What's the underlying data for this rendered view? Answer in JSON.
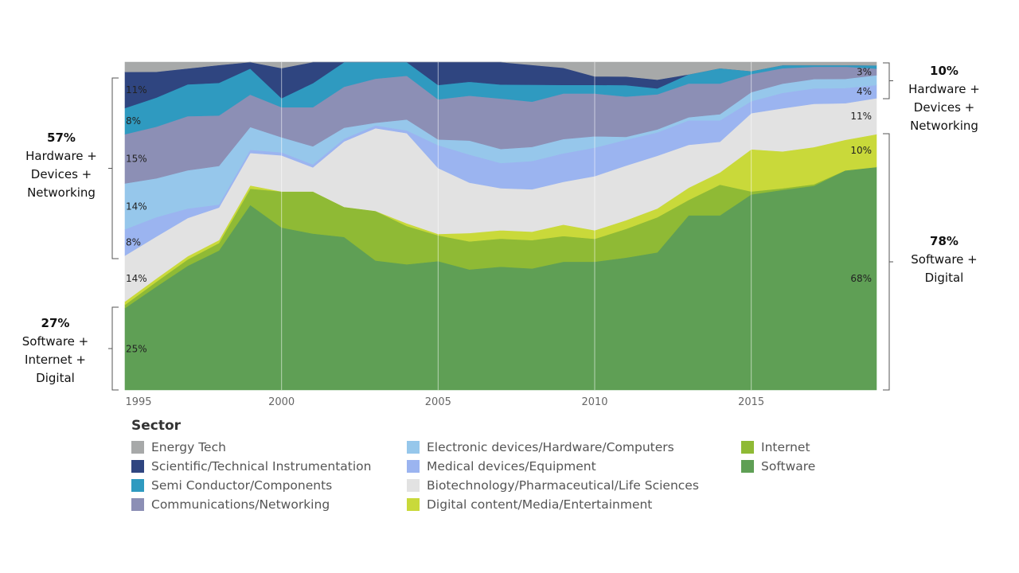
{
  "chart_data": {
    "type": "area",
    "stacking": "percent",
    "x": [
      1995,
      1996,
      1997,
      1998,
      1999,
      2000,
      2001,
      2002,
      2003,
      2004,
      2005,
      2006,
      2007,
      2008,
      2009,
      2010,
      2011,
      2012,
      2013,
      2014,
      2015,
      2016,
      2017,
      2018,
      2019
    ],
    "xticks": [
      "1995",
      "2000",
      "2005",
      "2010",
      "2015"
    ],
    "xlim": [
      1995,
      2019
    ],
    "ylim": [
      0,
      100
    ],
    "legend_title": "Sector",
    "legend_position": "bottom",
    "grid": "vertical lines at ticks",
    "series": [
      {
        "name": "Software",
        "color": "#5f9f55",
        "values": [
          25,
          32,
          39,
          47,
          57,
          54,
          52,
          56,
          47,
          46,
          45,
          43,
          44,
          43,
          45,
          45,
          46,
          47,
          57,
          57,
          65,
          65,
          66,
          72,
          68
        ]
      },
      {
        "name": "Internet",
        "color": "#8fba35",
        "values": [
          1,
          1.5,
          2,
          2.5,
          5,
          12,
          14,
          11,
          18,
          14,
          9,
          10,
          10,
          10,
          9,
          8,
          10,
          12,
          5,
          10,
          1,
          0.5,
          0.5,
          0,
          0
        ]
      },
      {
        "name": "Digital content/Media/Entertainment",
        "color": "#c9d93a",
        "values": [
          1,
          1,
          1,
          1,
          1,
          0,
          0,
          0,
          0,
          1,
          0.5,
          3,
          3,
          3,
          4,
          3,
          3,
          3,
          4,
          4,
          14,
          12,
          12,
          10,
          10
        ]
      },
      {
        "name": "Biotechnology/Pharmaceutical/Life Sciences",
        "color": "#e2e2e2",
        "values": [
          14,
          13,
          12,
          11,
          10,
          12,
          8,
          24,
          30,
          33,
          23,
          18,
          15,
          15,
          15,
          19,
          19,
          18,
          14,
          10,
          12,
          14,
          14,
          12,
          11
        ]
      },
      {
        "name": "Medical devices/Equipment",
        "color": "#9bb4f0",
        "values": [
          8,
          6,
          3,
          1,
          1,
          1,
          1,
          1,
          1,
          1,
          8,
          10,
          9,
          10,
          10,
          10,
          9,
          8,
          8,
          7,
          4,
          5,
          5,
          5,
          4
        ]
      },
      {
        "name": "Electronic devices/Hardware/Computers",
        "color": "#96c7eb",
        "values": [
          14,
          12,
          12,
          13,
          7,
          5,
          6,
          4,
          1,
          4,
          2,
          5,
          5,
          5,
          5,
          4,
          1,
          1,
          1,
          2,
          3,
          3,
          3,
          3,
          3
        ]
      },
      {
        "name": "Communications/Networking",
        "color": "#8c8fb5",
        "values": [
          15,
          16,
          17,
          17,
          10,
          10,
          13,
          15,
          16,
          16,
          14,
          16,
          18,
          16,
          16,
          15,
          14,
          12,
          11,
          10,
          6,
          5,
          4,
          4,
          2
        ]
      },
      {
        "name": "Semi Conductor/Components",
        "color": "#2f9ac0",
        "values": [
          8,
          9,
          10,
          11,
          8,
          3,
          8,
          9,
          6,
          5,
          5,
          5,
          5,
          6,
          3,
          3,
          4,
          2,
          3,
          5,
          1,
          1,
          0.5,
          0.5,
          1
        ]
      },
      {
        "name": "Scientific/Technical Instrumentation",
        "color": "#2f4580",
        "values": [
          11,
          8,
          5,
          6,
          2,
          10,
          7,
          0,
          0,
          0,
          8,
          7,
          8,
          7,
          6,
          3,
          3,
          3,
          0,
          0,
          0,
          0,
          0,
          0,
          0
        ]
      },
      {
        "name": "Energy Tech",
        "color": "#a7a9a9",
        "values": [
          3,
          3,
          2,
          1,
          0,
          2,
          0,
          0,
          0,
          0,
          0,
          0,
          0,
          1,
          2,
          5,
          5,
          6,
          4,
          2,
          3,
          1,
          1,
          1,
          1
        ]
      }
    ],
    "data_labels": [
      {
        "year": 1995,
        "value": 11,
        "text": "11%"
      },
      {
        "year": 1995,
        "value": 8,
        "text": "8%"
      },
      {
        "year": 1995,
        "value": 15,
        "text": "15%"
      },
      {
        "year": 1995,
        "value": 14,
        "text": "14%"
      },
      {
        "year": 1995,
        "value": 8,
        "text": "8%"
      },
      {
        "year": 1995,
        "value": 14,
        "text": "14%"
      },
      {
        "year": 1995,
        "value": 25,
        "text": "25%"
      },
      {
        "year": 2019,
        "value": 3,
        "text": "3%"
      },
      {
        "year": 2019,
        "value": 4,
        "text": "4%"
      },
      {
        "year": 2019,
        "value": 11,
        "text": "11%"
      },
      {
        "year": 2019,
        "value": 10,
        "text": "10%"
      },
      {
        "year": 2019,
        "value": 68,
        "text": "68%"
      }
    ],
    "brackets": [
      {
        "side": "left",
        "percent": "57%",
        "description": "Hardware +\nDevices +\nNetworking"
      },
      {
        "side": "left",
        "percent": "27%",
        "description": "Software +\nInternet +\nDigital"
      },
      {
        "side": "right",
        "percent": "10%",
        "description": "Hardware +\nDevices +\nNetworking"
      },
      {
        "side": "right",
        "percent": "78%",
        "description": "Software +\nDigital"
      }
    ],
    "legend_order": [
      "Energy Tech",
      "Scientific/Technical Instrumentation",
      "Semi Conductor/Components",
      "Communications/Networking",
      "Electronic devices/Hardware/Computers",
      "Medical devices/Equipment",
      "Biotechnology/Pharmaceutical/Life Sciences",
      "Digital content/Media/Entertainment",
      "Internet",
      "Software"
    ]
  }
}
